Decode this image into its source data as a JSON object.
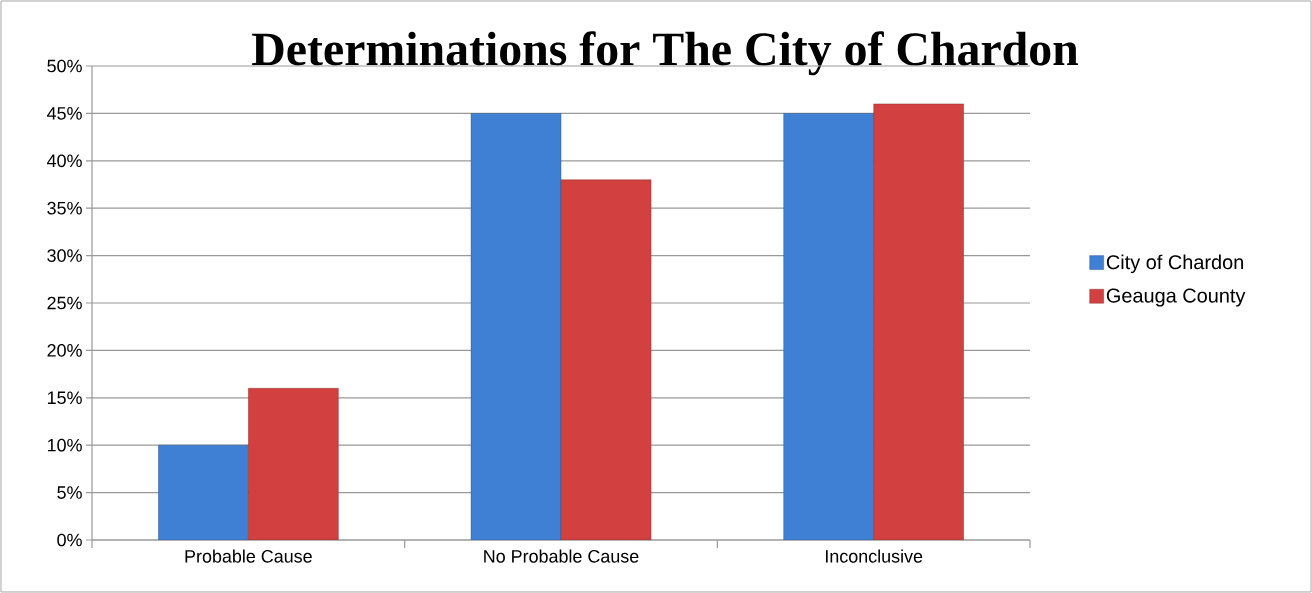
{
  "chart_data": {
    "type": "bar",
    "title": "Determinations for The City of Chardon",
    "categories": [
      "Probable Cause",
      "No Probable Cause",
      "Inconclusive"
    ],
    "series": [
      {
        "name": "City of Chardon",
        "color": "#3f7fd4",
        "values": [
          10,
          45,
          45
        ]
      },
      {
        "name": "Geauga County",
        "color": "#d24040",
        "values": [
          16,
          38,
          46
        ]
      }
    ],
    "ylim": [
      0,
      50
    ],
    "yticks": [
      {
        "value": 0,
        "label": "0%"
      },
      {
        "value": 5,
        "label": "5%"
      },
      {
        "value": 10,
        "label": "10%"
      },
      {
        "value": 15,
        "label": "15%"
      },
      {
        "value": 20,
        "label": "20%"
      },
      {
        "value": 25,
        "label": "25%"
      },
      {
        "value": 30,
        "label": "30%"
      },
      {
        "value": 35,
        "label": "35%"
      },
      {
        "value": 40,
        "label": "40%"
      },
      {
        "value": 45,
        "label": "45%"
      },
      {
        "value": 50,
        "label": "50%"
      }
    ],
    "grid": "y",
    "legend": "right"
  }
}
